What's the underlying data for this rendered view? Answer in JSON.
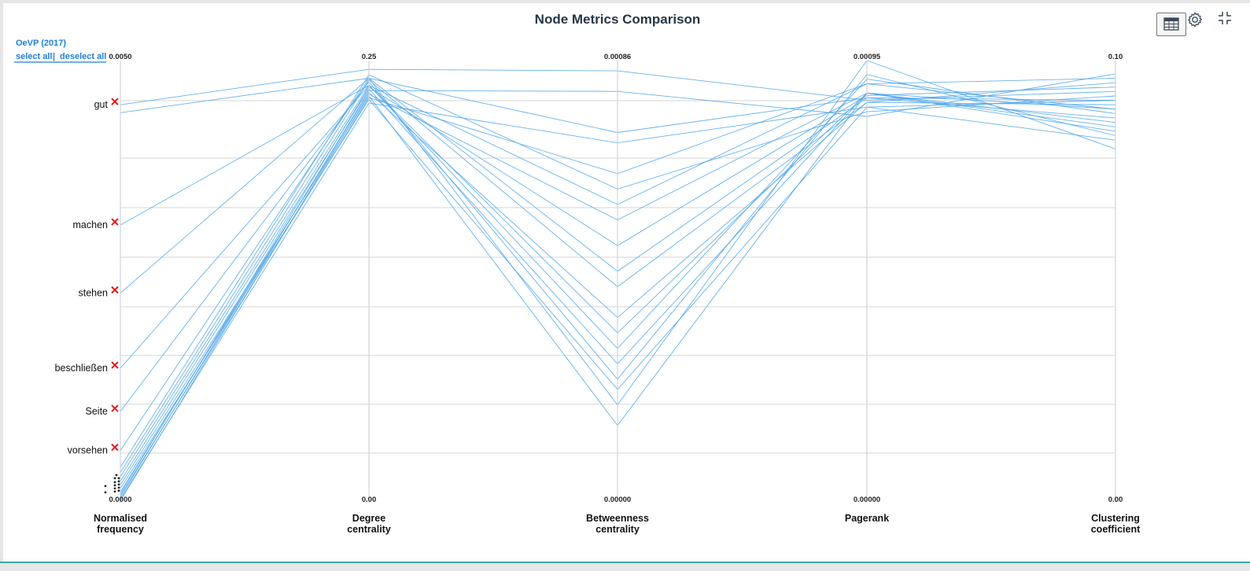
{
  "chart_data": {
    "type": "parallel-coordinates",
    "title": "Node Metrics Comparison",
    "series_name": "OeVP (2017)",
    "axes": [
      {
        "label": "Normalised frequency",
        "max_label": "0.0050",
        "min_label": "0.0000",
        "range": [
          0,
          0.005
        ]
      },
      {
        "label": "Degree centrality",
        "max_label": "0.25",
        "min_label": "0.00",
        "range": [
          0,
          0.25
        ]
      },
      {
        "label": "Betweenness centrality",
        "max_label": "0.00086",
        "min_label": "0.00000",
        "range": [
          0,
          0.00086
        ]
      },
      {
        "label": "Pagerank",
        "max_label": "0.00095",
        "min_label": "0.00000",
        "range": [
          0,
          0.00095
        ]
      },
      {
        "label": "Clustering coefficient",
        "max_label": "0.10",
        "min_label": "0.00",
        "range": [
          0,
          0.1
        ]
      }
    ],
    "labeled_nodes": [
      {
        "name": "gut",
        "frequency": 0.0045
      },
      {
        "name": "machen",
        "frequency": 0.00314
      },
      {
        "name": "stehen",
        "frequency": 0.00237
      },
      {
        "name": "beschließen",
        "frequency": 0.00152
      },
      {
        "name": "Seite",
        "frequency": 0.00103
      },
      {
        "name": "vorsehen",
        "frequency": 0.00059
      }
    ],
    "lines": [
      [
        0.0045,
        0.245,
        0.00084,
        0.000865,
        0.093
      ],
      [
        0.00441,
        0.24,
        0.00072,
        0.00087,
        0.091
      ],
      [
        0.00314,
        0.236,
        0.00058,
        0.0009,
        0.089
      ],
      [
        0.00237,
        0.24,
        0.00045,
        0.00087,
        0.087
      ],
      [
        0.00152,
        0.236,
        0.00033,
        0.00088,
        0.085
      ],
      [
        0.00103,
        0.238,
        0.00024,
        0.00092,
        0.083
      ],
      [
        0.00059,
        0.24,
        0.00019,
        0.00095,
        0.08
      ],
      [
        0.0004,
        0.242,
        0.00061,
        0.00084,
        0.092
      ],
      [
        0.00034,
        0.239,
        0.00042,
        0.00086,
        0.09
      ],
      [
        0.00029,
        0.236,
        0.0003,
        0.00091,
        0.088
      ],
      [
        0.00024,
        0.234,
        0.00027,
        0.00088,
        0.086
      ],
      [
        0.0002,
        0.23,
        0.00015,
        0.00088,
        0.084
      ],
      [
        0.00016,
        0.228,
        0.00022,
        0.00085,
        0.082
      ],
      [
        0.00012,
        0.232,
        0.00036,
        0.00086,
        0.095
      ],
      [
        0.0001,
        0.235,
        0.0005,
        0.000875,
        0.094
      ],
      [
        8e-05,
        0.229,
        0.00064,
        0.0009,
        0.096
      ],
      [
        6e-05,
        0.233,
        0.0008,
        0.00083,
        0.097
      ],
      [
        4e-05,
        0.226,
        0.0007,
        0.00085,
        0.091
      ],
      [
        2e-05,
        0.231,
        0.00055,
        0.00088,
        0.089
      ]
    ],
    "grid": true
  },
  "controls": {
    "select_all": "select all",
    "separator": "|",
    "deselect_all": "deselect all"
  },
  "icons": {
    "table": "table-icon",
    "settings": "gear-icon",
    "collapse": "collapse-icon",
    "remove": "x-mark-icon"
  },
  "colors": {
    "line": "#4ea5ea",
    "accent": "#1f7fd8",
    "remove": "#e01b1b",
    "title": "#253746"
  }
}
